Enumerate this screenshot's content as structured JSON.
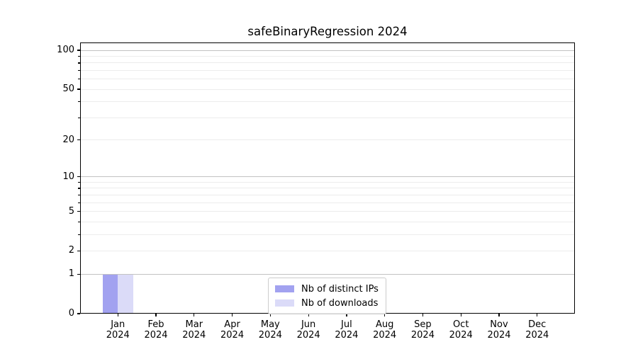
{
  "figure": {
    "background": "#ffffff"
  },
  "chart_data": {
    "type": "bar",
    "title": "safeBinaryRegression 2024",
    "categories": [
      "Jan",
      "Feb",
      "Mar",
      "Apr",
      "May",
      "Jun",
      "Jul",
      "Aug",
      "Sep",
      "Oct",
      "Nov",
      "Dec"
    ],
    "x_year": "2024",
    "series": [
      {
        "name": "Nb of distinct IPs",
        "color": "#a2a2f0",
        "values": [
          1,
          0,
          0,
          0,
          0,
          0,
          0,
          0,
          0,
          0,
          0,
          0
        ]
      },
      {
        "name": "Nb of downloads",
        "color": "#dbdbf8",
        "values": [
          1,
          0,
          0,
          0,
          0,
          0,
          0,
          0,
          0,
          0,
          0,
          0
        ]
      }
    ],
    "yscale": "log1p",
    "ylim": [
      0,
      114.8
    ],
    "yticks": [
      0,
      1,
      2,
      5,
      10,
      20,
      50,
      100
    ],
    "yticks_minor": [
      3,
      4,
      6,
      7,
      8,
      9,
      30,
      40,
      60,
      70,
      80,
      90
    ],
    "grid": {
      "dark": [
        1,
        10,
        100
      ],
      "light": [
        2,
        3,
        4,
        5,
        6,
        7,
        8,
        9,
        20,
        30,
        40,
        50,
        60,
        70,
        80,
        90
      ]
    },
    "legend": {
      "position": "lower center"
    },
    "colors": {
      "major_grid": "#c2c2c2",
      "minor_grid": "#ececec",
      "spine": "#000000",
      "text": "#000000",
      "legend_border": "#cccccc"
    }
  }
}
